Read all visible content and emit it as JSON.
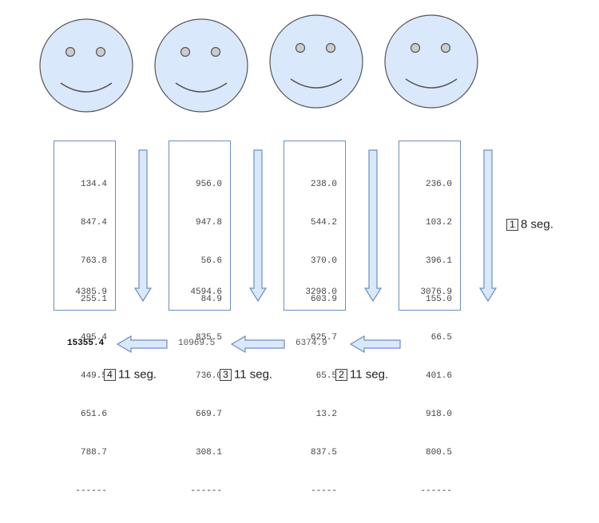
{
  "columns": [
    {
      "values": [
        "134.4",
        "847.4",
        "763.8",
        "255.1",
        "495.4",
        "449.5",
        "651.6",
        "788.7"
      ],
      "separator": "------",
      "total": "4385.9"
    },
    {
      "values": [
        "956.0",
        "947.8",
        "56.6",
        "84.9",
        "835.5",
        "736.0",
        "669.7",
        "308.1"
      ],
      "separator": "------",
      "total": "4594.6"
    },
    {
      "values": [
        "238.0",
        "544.2",
        "370.0",
        "603.9",
        "625.7",
        "65.5",
        "13.2",
        "837.5"
      ],
      "separator": "-----",
      "total": "3298.0"
    },
    {
      "values": [
        "236.0",
        "103.2",
        "396.1",
        "155.0",
        "66.5",
        "401.6",
        "918.0",
        "800.5"
      ],
      "separator": "------",
      "total": "3076.9"
    }
  ],
  "steps": [
    {
      "badge": "1",
      "label": "8 seg."
    },
    {
      "badge": "2",
      "label": "11 seg."
    },
    {
      "badge": "3",
      "label": "11 seg."
    },
    {
      "badge": "4",
      "label": "11 seg."
    }
  ],
  "running_sums": [
    "6374.9",
    "10969.5",
    "15355.4"
  ],
  "colors": {
    "fill": "#dae8fc",
    "stroke": "#6c8ebf",
    "face_stroke": "#555555"
  }
}
